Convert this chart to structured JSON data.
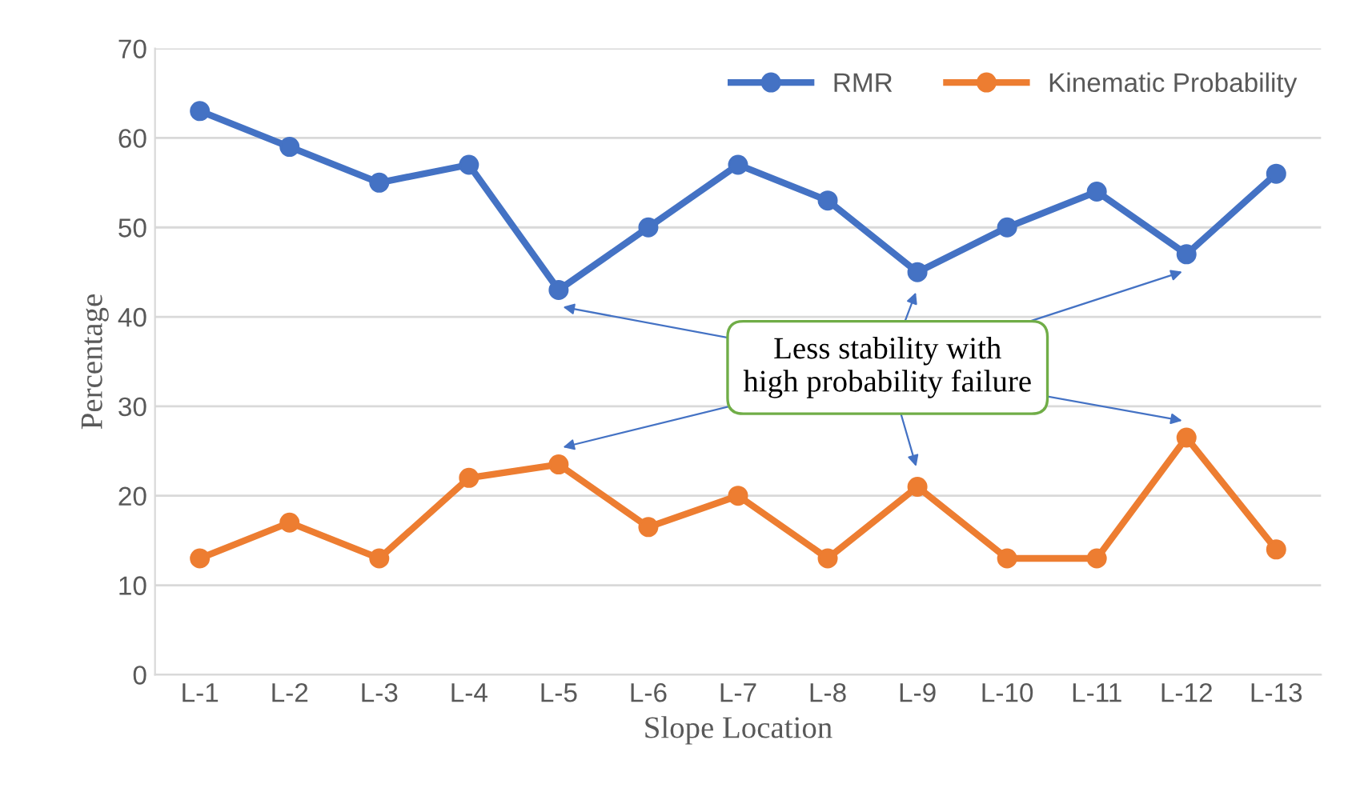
{
  "chart_data": {
    "type": "line",
    "categories": [
      "L-1",
      "L-2",
      "L-3",
      "L-4",
      "L-5",
      "L-6",
      "L-7",
      "L-8",
      "L-9",
      "L-10",
      "L-11",
      "L-12",
      "L-13"
    ],
    "series": [
      {
        "name": "RMR",
        "color": "#4472c4",
        "values": [
          63,
          59,
          55,
          57,
          43,
          50,
          57,
          53,
          45,
          50,
          54,
          47,
          56
        ]
      },
      {
        "name": "Kinematic Probability",
        "color": "#ed7d31",
        "values": [
          13,
          17,
          13,
          22,
          23.5,
          16.5,
          20,
          13,
          21,
          13,
          13,
          26.5,
          14
        ]
      }
    ],
    "xlabel": "Slope Location",
    "ylabel": "Percentage",
    "ylim": [
      0,
      70
    ],
    "yticks": [
      0,
      10,
      20,
      30,
      40,
      50,
      60,
      70
    ],
    "grid": "y",
    "legend": "top right",
    "marker": "circle",
    "line_style": "solid",
    "annotations": [
      "Less stability with\nhigh probability failure"
    ]
  }
}
